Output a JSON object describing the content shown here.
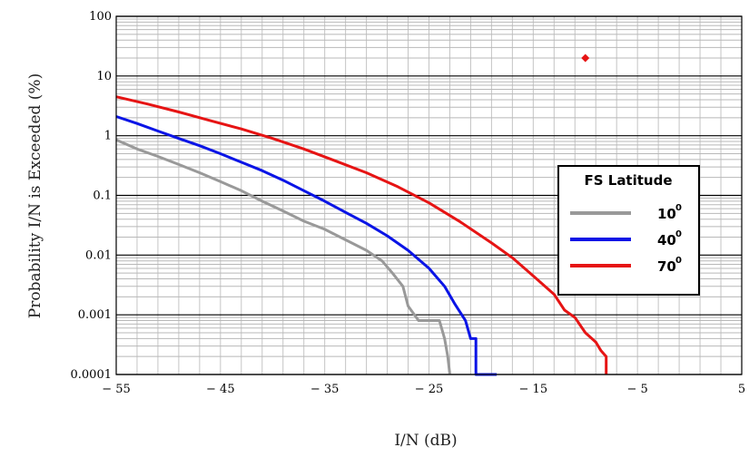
{
  "chart_data": {
    "type": "line",
    "xlabel": "I/N (dB)",
    "ylabel": "Probability I/N is Exceeded (%)",
    "xlim": [
      -55,
      5
    ],
    "ylim": [
      0.0001,
      100
    ],
    "yscale": "log",
    "grid": true,
    "x_ticks": [
      -55,
      -45,
      -35,
      -25,
      -15,
      -5,
      5
    ],
    "x_tick_labels": [
      "− 55",
      "− 45",
      "− 35",
      "− 25",
      "− 15",
      "− 5",
      "5"
    ],
    "y_ticks": [
      0.0001,
      0.001,
      0.01,
      0.1,
      1,
      10,
      100
    ],
    "y_tick_labels": [
      "0.0001",
      "0.001",
      "0.01",
      "0.1",
      "1",
      "10",
      "100"
    ],
    "legend": {
      "title": "FS Latitude",
      "placement": "right",
      "entries": [
        {
          "label": "10",
          "superscript": "0",
          "color": "#999999"
        },
        {
          "label": "40",
          "superscript": "0",
          "color": "#0a14e6"
        },
        {
          "label": "70",
          "superscript": "0",
          "color": "#e61414"
        }
      ]
    },
    "series": [
      {
        "name": "10⁰",
        "color": "#999999",
        "x": [
          -55,
          -53,
          -51,
          -49,
          -47,
          -45,
          -43,
          -41,
          -39,
          -37,
          -35,
          -33,
          -31,
          -29.5,
          -28.5,
          -27.5,
          -27,
          -26,
          -25,
          -24,
          -23.5,
          -23.2,
          -23
        ],
        "y": [
          0.85,
          0.6,
          0.45,
          0.33,
          0.24,
          0.17,
          0.12,
          0.08,
          0.055,
          0.037,
          0.027,
          0.018,
          0.012,
          0.008,
          0.005,
          0.003,
          0.0014,
          0.0008,
          0.0008,
          0.0008,
          0.0004,
          0.0002,
          0.0001
        ]
      },
      {
        "name": "40⁰",
        "color": "#0a14e6",
        "x": [
          -55,
          -53,
          -51,
          -49,
          -47,
          -45,
          -43,
          -41,
          -39,
          -37,
          -35,
          -33,
          -31,
          -29,
          -27,
          -25,
          -23.5,
          -22.5,
          -21.5,
          -21,
          -20.5,
          -20.5,
          -18.5
        ],
        "y": [
          2.1,
          1.6,
          1.2,
          0.9,
          0.68,
          0.5,
          0.36,
          0.26,
          0.18,
          0.12,
          0.08,
          0.052,
          0.034,
          0.021,
          0.012,
          0.006,
          0.003,
          0.0015,
          0.0008,
          0.0004,
          0.0004,
          0.0001,
          0.0001
        ]
      },
      {
        "name": "70⁰",
        "color": "#e61414",
        "x": [
          -55,
          -52,
          -49,
          -46,
          -43,
          -40,
          -37,
          -34,
          -31,
          -28,
          -25,
          -22,
          -19,
          -17,
          -15,
          -13,
          -12,
          -11,
          -10,
          -9,
          -8.5,
          -8,
          -8
        ],
        "y": [
          4.5,
          3.4,
          2.5,
          1.8,
          1.3,
          0.9,
          0.6,
          0.38,
          0.24,
          0.14,
          0.075,
          0.036,
          0.016,
          0.009,
          0.0045,
          0.0022,
          0.0012,
          0.0009,
          0.0005,
          0.00035,
          0.00025,
          0.0002,
          0.0001
        ]
      }
    ],
    "annotation_point": {
      "x": -10,
      "y": 20,
      "color": "#e61414",
      "marker": "diamond"
    }
  }
}
